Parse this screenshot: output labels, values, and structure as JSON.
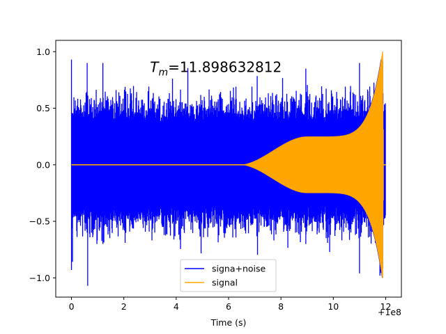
{
  "chart_data": {
    "type": "line",
    "title": "",
    "xlabel": "Time (s)",
    "ylabel": "",
    "x_offset_label": "+1e8",
    "xlim": [
      -0.6,
      12.6
    ],
    "ylim": [
      -1.17,
      1.1
    ],
    "x_ticks": [
      0,
      2,
      4,
      6,
      8,
      10,
      12
    ],
    "y_ticks": [
      -1.0,
      -0.5,
      0.0,
      0.5,
      1.0
    ],
    "x_tick_labels": [
      "0",
      "2",
      "4",
      "6",
      "8",
      "10",
      "12"
    ],
    "y_tick_labels": [
      "−1.0",
      "−0.5",
      "0.0",
      "0.5",
      "1.0"
    ],
    "annotation": {
      "symbol": "T",
      "subscript": "m",
      "value_text": "=11.898632812",
      "x": 3.0,
      "y": 0.82
    },
    "legend": {
      "placement": "lower-center"
    },
    "series": [
      {
        "name": "signa+noise",
        "color": "#0000ff",
        "description": "noisy oscillation between about -1.07 and 0.93 over 0 to 12"
      },
      {
        "name": "signal",
        "color": "#ffa500",
        "description": "chirp with envelope growing from 0 near t=6.5 to about 0.25 at t=9, then rising to a peak of 1.0 at t=11.9"
      }
    ],
    "grid": false
  }
}
